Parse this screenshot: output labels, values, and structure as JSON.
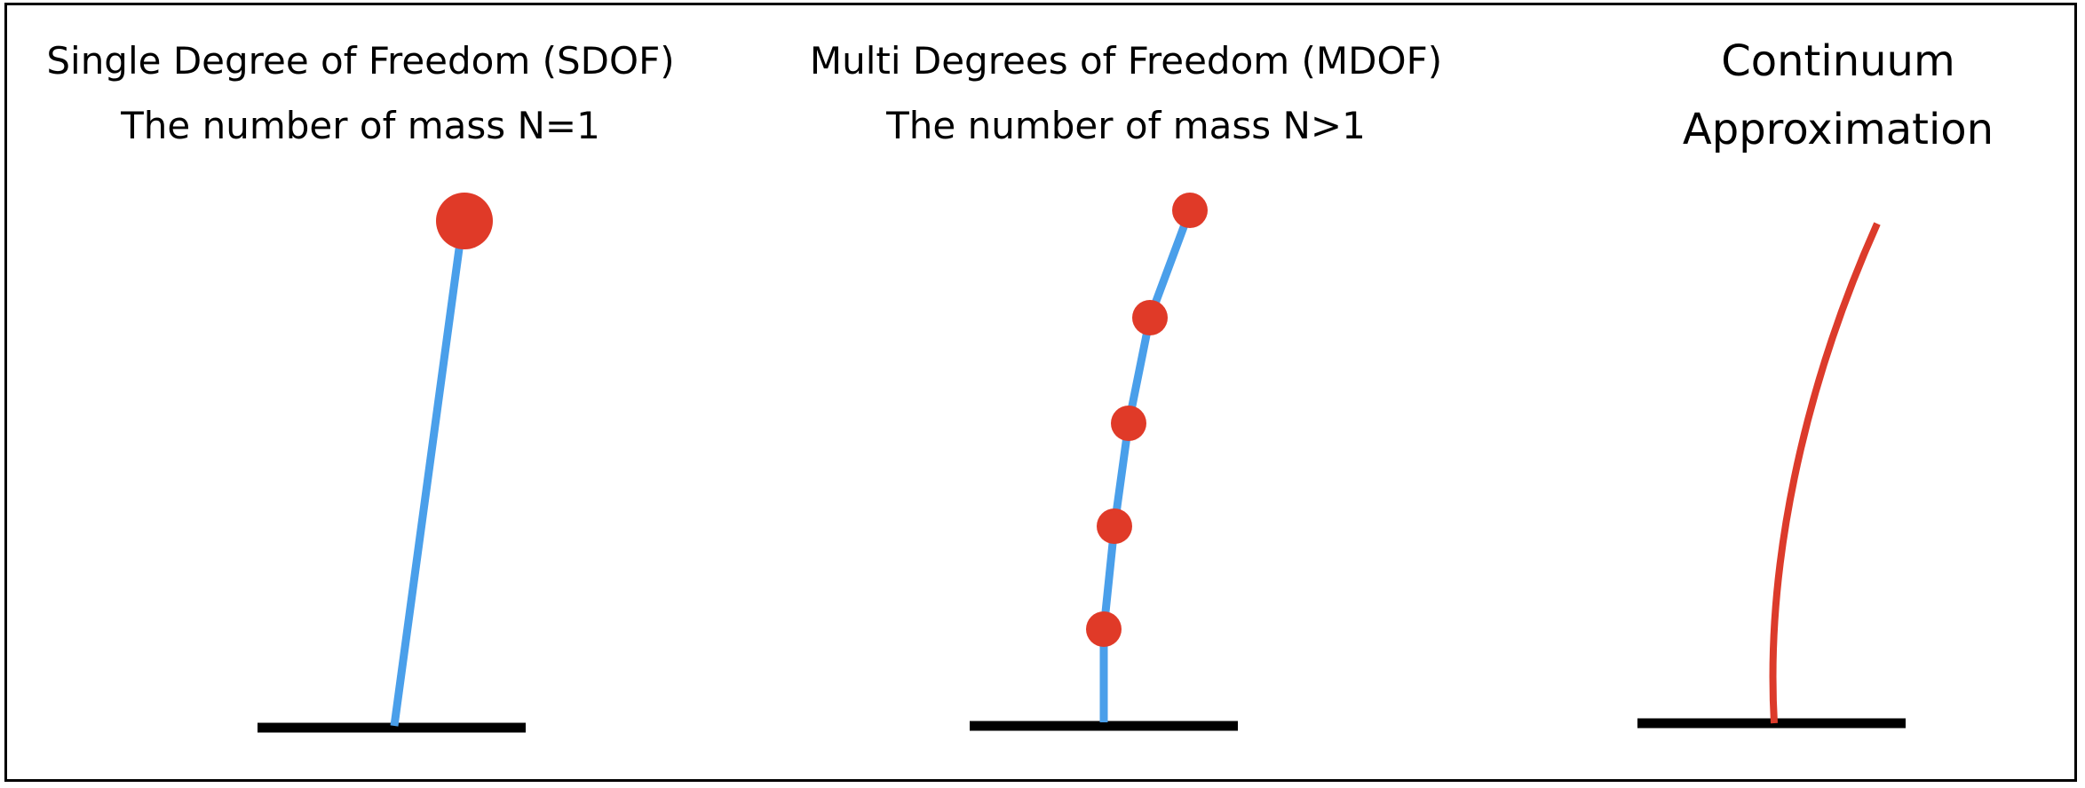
{
  "panels": [
    {
      "title_line1": "Single Degree of Freedom (SDOF)",
      "title_line2": "The number of mass N=1",
      "mass_count": 1
    },
    {
      "title_line1": "Multi Degrees of Freedom  (MDOF)",
      "title_line2": "The number of mass N>1",
      "mass_count": 5
    },
    {
      "title_line1": "Continuum",
      "title_line2": "Approximation",
      "mass_count": 0
    }
  ],
  "colors": {
    "column": "#4a9fea",
    "mass": "#e03a28",
    "continuum": "#dc3b2b",
    "ground": "#000000",
    "frame": "#000000"
  }
}
